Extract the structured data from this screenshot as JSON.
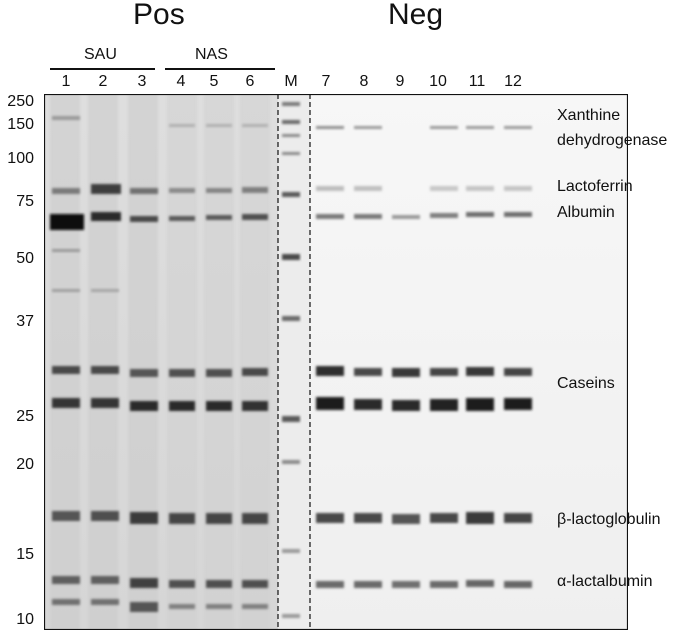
{
  "header": {
    "group_pos": "Pos",
    "group_neg": "Neg",
    "subgroup_sau": "SAU",
    "subgroup_nas": "NAS"
  },
  "lanes": [
    "1",
    "2",
    "3",
    "4",
    "5",
    "6",
    "M",
    "7",
    "8",
    "9",
    "10",
    "11",
    "12"
  ],
  "marker_kda": [
    "250",
    "150",
    "100",
    "75",
    "50",
    "37",
    "25",
    "20",
    "15",
    "10"
  ],
  "band_labels": {
    "xanthine_line1": "Xanthine",
    "xanthine_line2": "dehydrogenase",
    "lactoferrin": "Lactoferrin",
    "albumin": "Albumin",
    "caseins": "Caseins",
    "b_lactoglobulin": "β-lactoglobulin",
    "a_lactalbumin": "α-lactalbumin"
  }
}
